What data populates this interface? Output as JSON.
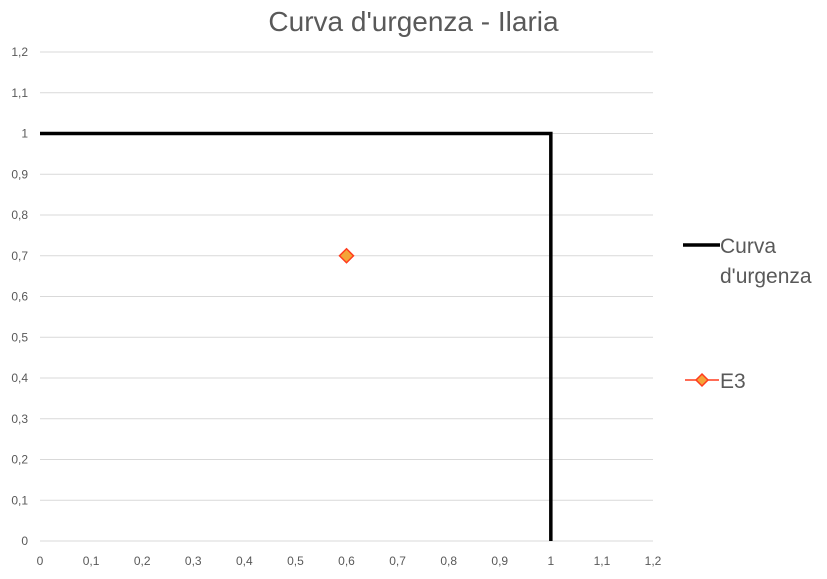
{
  "chart_data": {
    "type": "scatter",
    "title": "Curva d'urgenza - Ilaria",
    "xlabel": "",
    "ylabel": "",
    "xlim": [
      0,
      1.2
    ],
    "ylim": [
      0,
      1.2
    ],
    "x_ticks": [
      "0",
      "0,1",
      "0,2",
      "0,3",
      "0,4",
      "0,5",
      "0,6",
      "0,7",
      "0,8",
      "0,9",
      "1",
      "1,1",
      "1,2"
    ],
    "y_ticks": [
      "0",
      "0,1",
      "0,2",
      "0,3",
      "0,4",
      "0,5",
      "0,6",
      "0,7",
      "0,8",
      "0,9",
      "1",
      "1,1",
      "1,2"
    ],
    "grid": "horizontal",
    "legend_position": "right",
    "series": [
      {
        "name": "Curva d'urgenza",
        "mode": "line",
        "color": "#000000",
        "points": [
          [
            0,
            1
          ],
          [
            1,
            1
          ],
          [
            1,
            0
          ]
        ]
      },
      {
        "name": "E3",
        "mode": "marker",
        "marker": "diamond",
        "color": "#ff3c1e",
        "fill": "#f4a438",
        "points": [
          [
            0.6,
            0.7
          ]
        ]
      }
    ],
    "legend": {
      "line_label_lines": [
        "Curva",
        "d'urgenza"
      ],
      "marker_label": "E3"
    }
  }
}
